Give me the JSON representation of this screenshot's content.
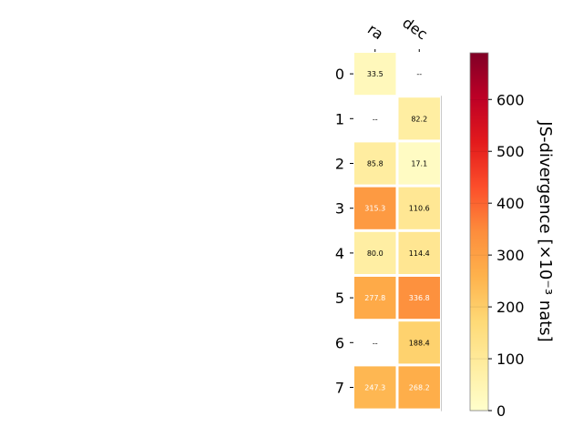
{
  "chart_data": {
    "type": "heatmap",
    "x_categories": [
      "ra",
      "dec"
    ],
    "y_categories": [
      "0",
      "1",
      "2",
      "3",
      "4",
      "5",
      "6",
      "7"
    ],
    "values": [
      [
        33.5,
        null
      ],
      [
        null,
        82.2
      ],
      [
        85.8,
        17.1
      ],
      [
        315.3,
        110.6
      ],
      [
        80.0,
        114.4
      ],
      [
        277.8,
        336.8
      ],
      [
        null,
        188.4
      ],
      [
        247.3,
        268.2
      ]
    ],
    "cell_labels": [
      [
        "33.5",
        "--"
      ],
      [
        "--",
        "82.2"
      ],
      [
        "85.8",
        "17.1"
      ],
      [
        "315.3",
        "110.6"
      ],
      [
        "80.0",
        "114.4"
      ],
      [
        "277.8",
        "336.8"
      ],
      [
        "--",
        "188.4"
      ],
      [
        "247.3",
        "268.2"
      ]
    ],
    "colorbar": {
      "label": "JS-divergence [×10⁻³ nats]",
      "range": [
        0,
        690
      ],
      "ticks": [
        "0",
        "100",
        "200",
        "300",
        "400",
        "500",
        "600"
      ],
      "tick_values": [
        0,
        100,
        200,
        300,
        400,
        500,
        600
      ],
      "colormap": "YlOrRd",
      "colormap_stops": [
        "#ffffcc",
        "#ffeda0",
        "#fed976",
        "#feb24c",
        "#fd8d3c",
        "#fc4e2a",
        "#e31a1c",
        "#bd0026",
        "#800026"
      ]
    },
    "grid": false,
    "legend": "none",
    "missing_fill": "#ffffff"
  }
}
